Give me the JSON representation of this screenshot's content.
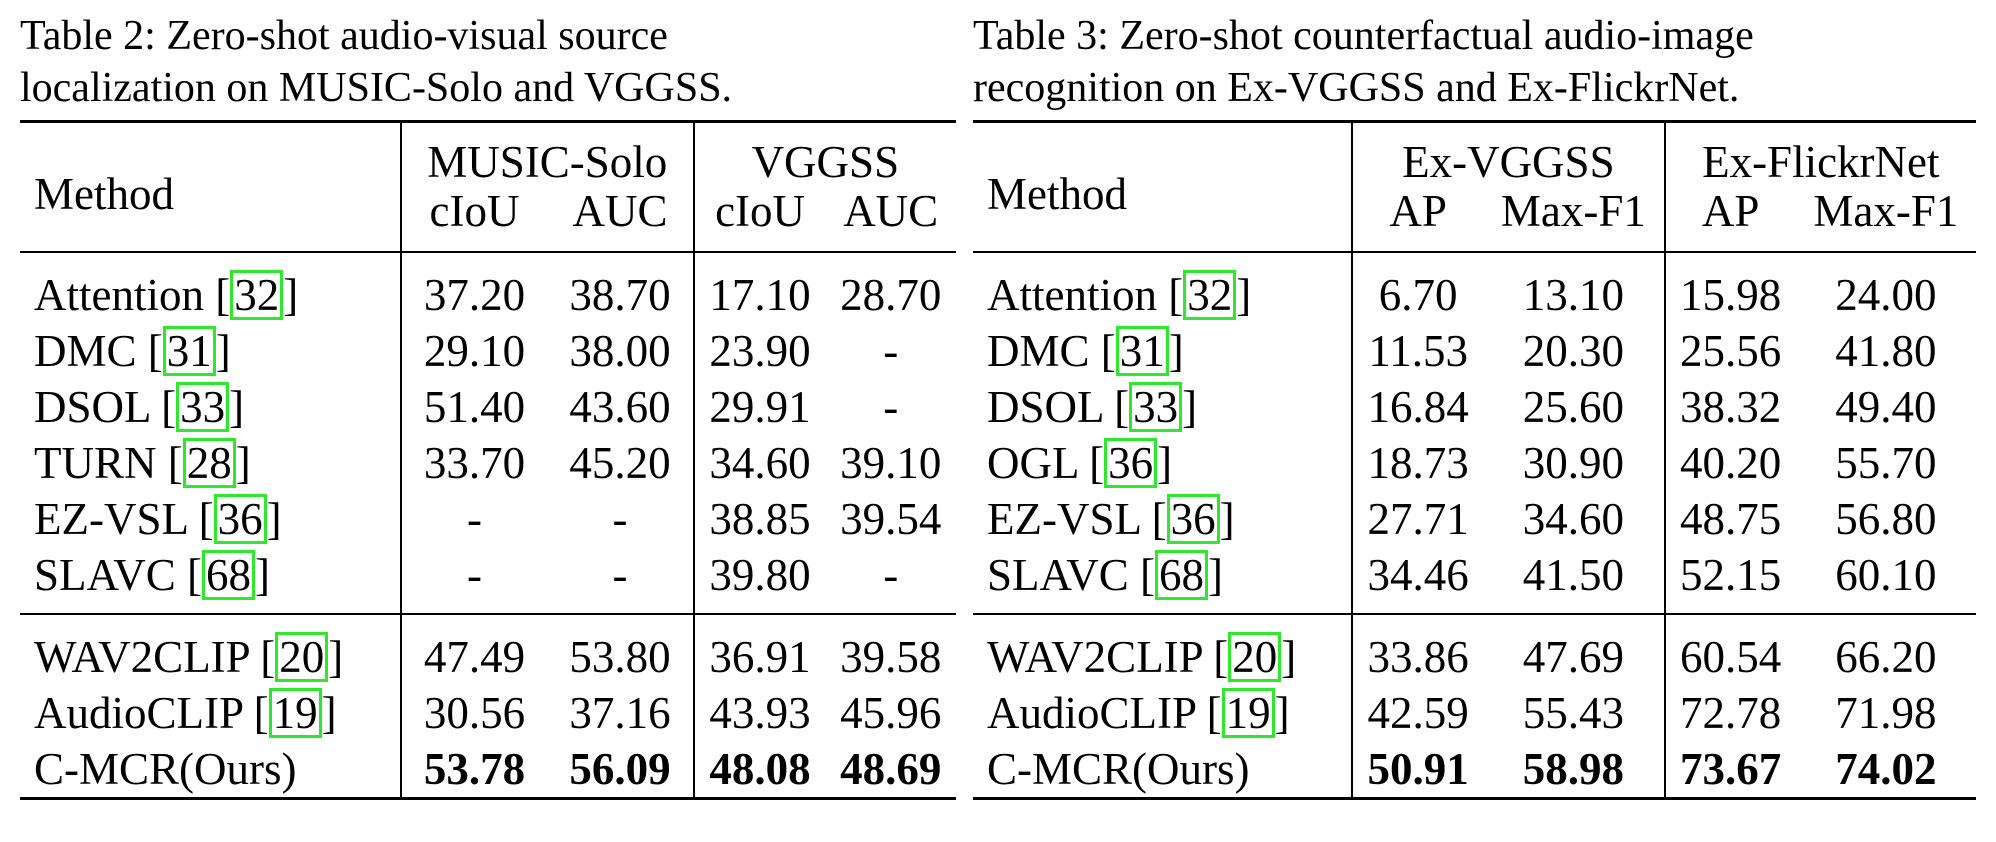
{
  "table2": {
    "caption_line1": "Table 2: Zero-shot audio-visual source",
    "caption_line2": "localization on MUSIC-Solo and VGGSS.",
    "method_header": "Method",
    "groups": [
      "MUSIC-Solo",
      "VGGSS"
    ],
    "metrics": [
      "cIoU",
      "AUC",
      "cIoU",
      "AUC"
    ],
    "rows": [
      {
        "name": "Attention",
        "ref": "32",
        "values": [
          "37.20",
          "38.70",
          "17.10",
          "28.70"
        ]
      },
      {
        "name": "DMC",
        "ref": "31",
        "values": [
          "29.10",
          "38.00",
          "23.90",
          "-"
        ]
      },
      {
        "name": "DSOL",
        "ref": "33",
        "values": [
          "51.40",
          "43.60",
          "29.91",
          "-"
        ]
      },
      {
        "name": "TURN",
        "ref": "28",
        "values": [
          "33.70",
          "45.20",
          "34.60",
          "39.10"
        ]
      },
      {
        "name": "EZ-VSL",
        "ref": "36",
        "values": [
          "-",
          "-",
          "38.85",
          "39.54"
        ]
      },
      {
        "name": "SLAVC",
        "ref": "68",
        "values": [
          "-",
          "-",
          "39.80",
          "-"
        ]
      },
      {
        "name": "WAV2CLIP",
        "ref": "20",
        "values": [
          "47.49",
          "53.80",
          "36.91",
          "39.58"
        ]
      },
      {
        "name": "AudioCLIP",
        "ref": "19",
        "values": [
          "30.56",
          "37.16",
          "43.93",
          "45.96"
        ]
      },
      {
        "name": "C-MCR(Ours)",
        "ref": "",
        "values": [
          "53.78",
          "56.09",
          "48.08",
          "48.69"
        ]
      }
    ]
  },
  "table3": {
    "caption_line1": "Table 3: Zero-shot counterfactual audio-image",
    "caption_line2": "recognition on Ex-VGGSS and Ex-FlickrNet.",
    "method_header": "Method",
    "groups": [
      "Ex-VGGSS",
      "Ex-FlickrNet"
    ],
    "metrics": [
      "AP",
      "Max-F1",
      "AP",
      "Max-F1"
    ],
    "rows": [
      {
        "name": "Attention",
        "ref": "32",
        "values": [
          "6.70",
          "13.10",
          "15.98",
          "24.00"
        ]
      },
      {
        "name": "DMC",
        "ref": "31",
        "values": [
          "11.53",
          "20.30",
          "25.56",
          "41.80"
        ]
      },
      {
        "name": "DSOL",
        "ref": "33",
        "values": [
          "16.84",
          "25.60",
          "38.32",
          "49.40"
        ]
      },
      {
        "name": "OGL",
        "ref": "36",
        "values": [
          "18.73",
          "30.90",
          "40.20",
          "55.70"
        ]
      },
      {
        "name": "EZ-VSL",
        "ref": "36",
        "values": [
          "27.71",
          "34.60",
          "48.75",
          "56.80"
        ]
      },
      {
        "name": "SLAVC",
        "ref": "68",
        "values": [
          "34.46",
          "41.50",
          "52.15",
          "60.10"
        ]
      },
      {
        "name": "WAV2CLIP",
        "ref": "20",
        "values": [
          "33.86",
          "47.69",
          "60.54",
          "66.20"
        ]
      },
      {
        "name": "AudioCLIP",
        "ref": "19",
        "values": [
          "42.59",
          "55.43",
          "72.78",
          "71.98"
        ]
      },
      {
        "name": "C-MCR(Ours)",
        "ref": "",
        "values": [
          "50.91",
          "58.98",
          "73.67",
          "74.02"
        ]
      }
    ]
  },
  "ref_box_color": "#2ee82e"
}
